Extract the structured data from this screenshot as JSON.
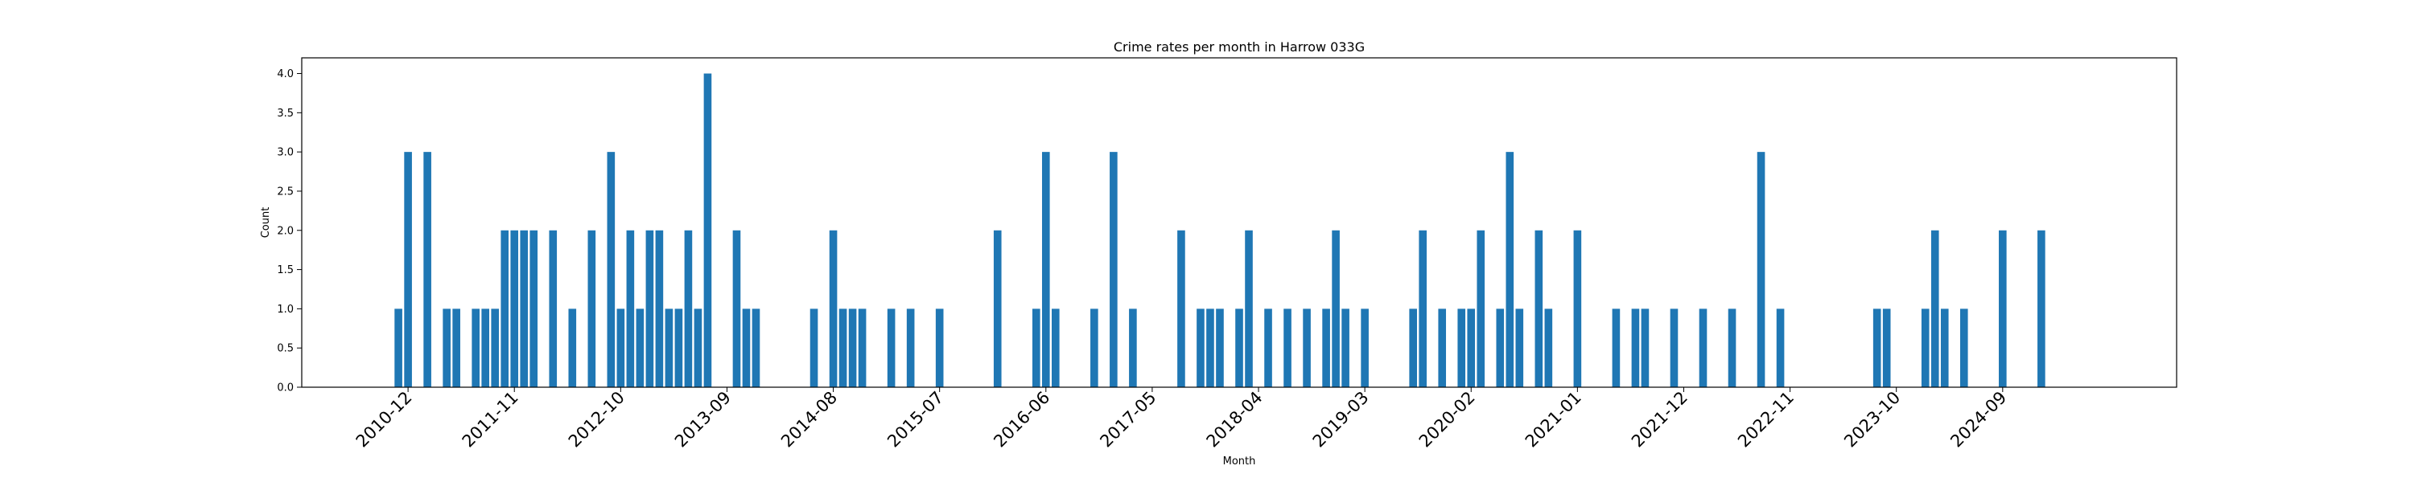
{
  "chart_data": {
    "type": "bar",
    "title": "Crime rates per month in Harrow 033G",
    "xlabel": "Month",
    "ylabel": "Count",
    "ylim": [
      0,
      4.2
    ],
    "xlim": [
      "2010-01",
      "2026-03"
    ],
    "yticks": [
      "0.0",
      "0.5",
      "1.0",
      "1.5",
      "2.0",
      "2.5",
      "3.0",
      "3.5",
      "4.0"
    ],
    "xticks": [
      "2010-12",
      "2011-11",
      "2012-10",
      "2013-09",
      "2014-08",
      "2015-07",
      "2016-06",
      "2017-05",
      "2018-04",
      "2019-03",
      "2020-02",
      "2021-01",
      "2021-12",
      "2022-11",
      "2023-10",
      "2024-09"
    ],
    "grid": false,
    "color": "#1f77b4",
    "series": [
      {
        "x": [
          "2010-11",
          "2010-12",
          "2011-02",
          "2011-04",
          "2011-05",
          "2011-07",
          "2011-08",
          "2011-09",
          "2011-10",
          "2011-11",
          "2011-12",
          "2012-01",
          "2012-03",
          "2012-05",
          "2012-07",
          "2012-09",
          "2012-10",
          "2012-11",
          "2012-12",
          "2013-01",
          "2013-02",
          "2013-03",
          "2013-04",
          "2013-05",
          "2013-06",
          "2013-07",
          "2013-10",
          "2013-11",
          "2013-12",
          "2014-06",
          "2014-08",
          "2014-09",
          "2014-10",
          "2014-11",
          "2015-02",
          "2015-04",
          "2015-07",
          "2016-01",
          "2016-05",
          "2016-06",
          "2016-07",
          "2016-11",
          "2017-01",
          "2017-03",
          "2017-08",
          "2017-10",
          "2017-11",
          "2017-12",
          "2018-02",
          "2018-03",
          "2018-05",
          "2018-07",
          "2018-09",
          "2018-11",
          "2018-12",
          "2019-01",
          "2019-03",
          "2019-08",
          "2019-09",
          "2019-11",
          "2020-01",
          "2020-02",
          "2020-03",
          "2020-05",
          "2020-06",
          "2020-07",
          "2020-09",
          "2020-10",
          "2021-01",
          "2021-05",
          "2021-07",
          "2021-08",
          "2021-11",
          "2022-02",
          "2022-05",
          "2022-08",
          "2022-10",
          "2023-08",
          "2023-09",
          "2024-01",
          "2024-02",
          "2024-03",
          "2024-05",
          "2024-09",
          "2025-01"
        ],
        "values": [
          1,
          3,
          3,
          1,
          1,
          1,
          1,
          1,
          2,
          2,
          2,
          2,
          2,
          1,
          2,
          3,
          1,
          2,
          1,
          2,
          2,
          1,
          1,
          2,
          1,
          4,
          2,
          1,
          1,
          1,
          2,
          1,
          1,
          1,
          1,
          1,
          1,
          2,
          1,
          3,
          1,
          1,
          3,
          1,
          2,
          1,
          1,
          1,
          1,
          2,
          1,
          1,
          1,
          1,
          2,
          1,
          1,
          1,
          2,
          1,
          1,
          1,
          2,
          1,
          3,
          1,
          2,
          1,
          2,
          1,
          1,
          1,
          1,
          1,
          1,
          3,
          1,
          1,
          1,
          1,
          2,
          1,
          1,
          2,
          2
        ]
      }
    ]
  }
}
